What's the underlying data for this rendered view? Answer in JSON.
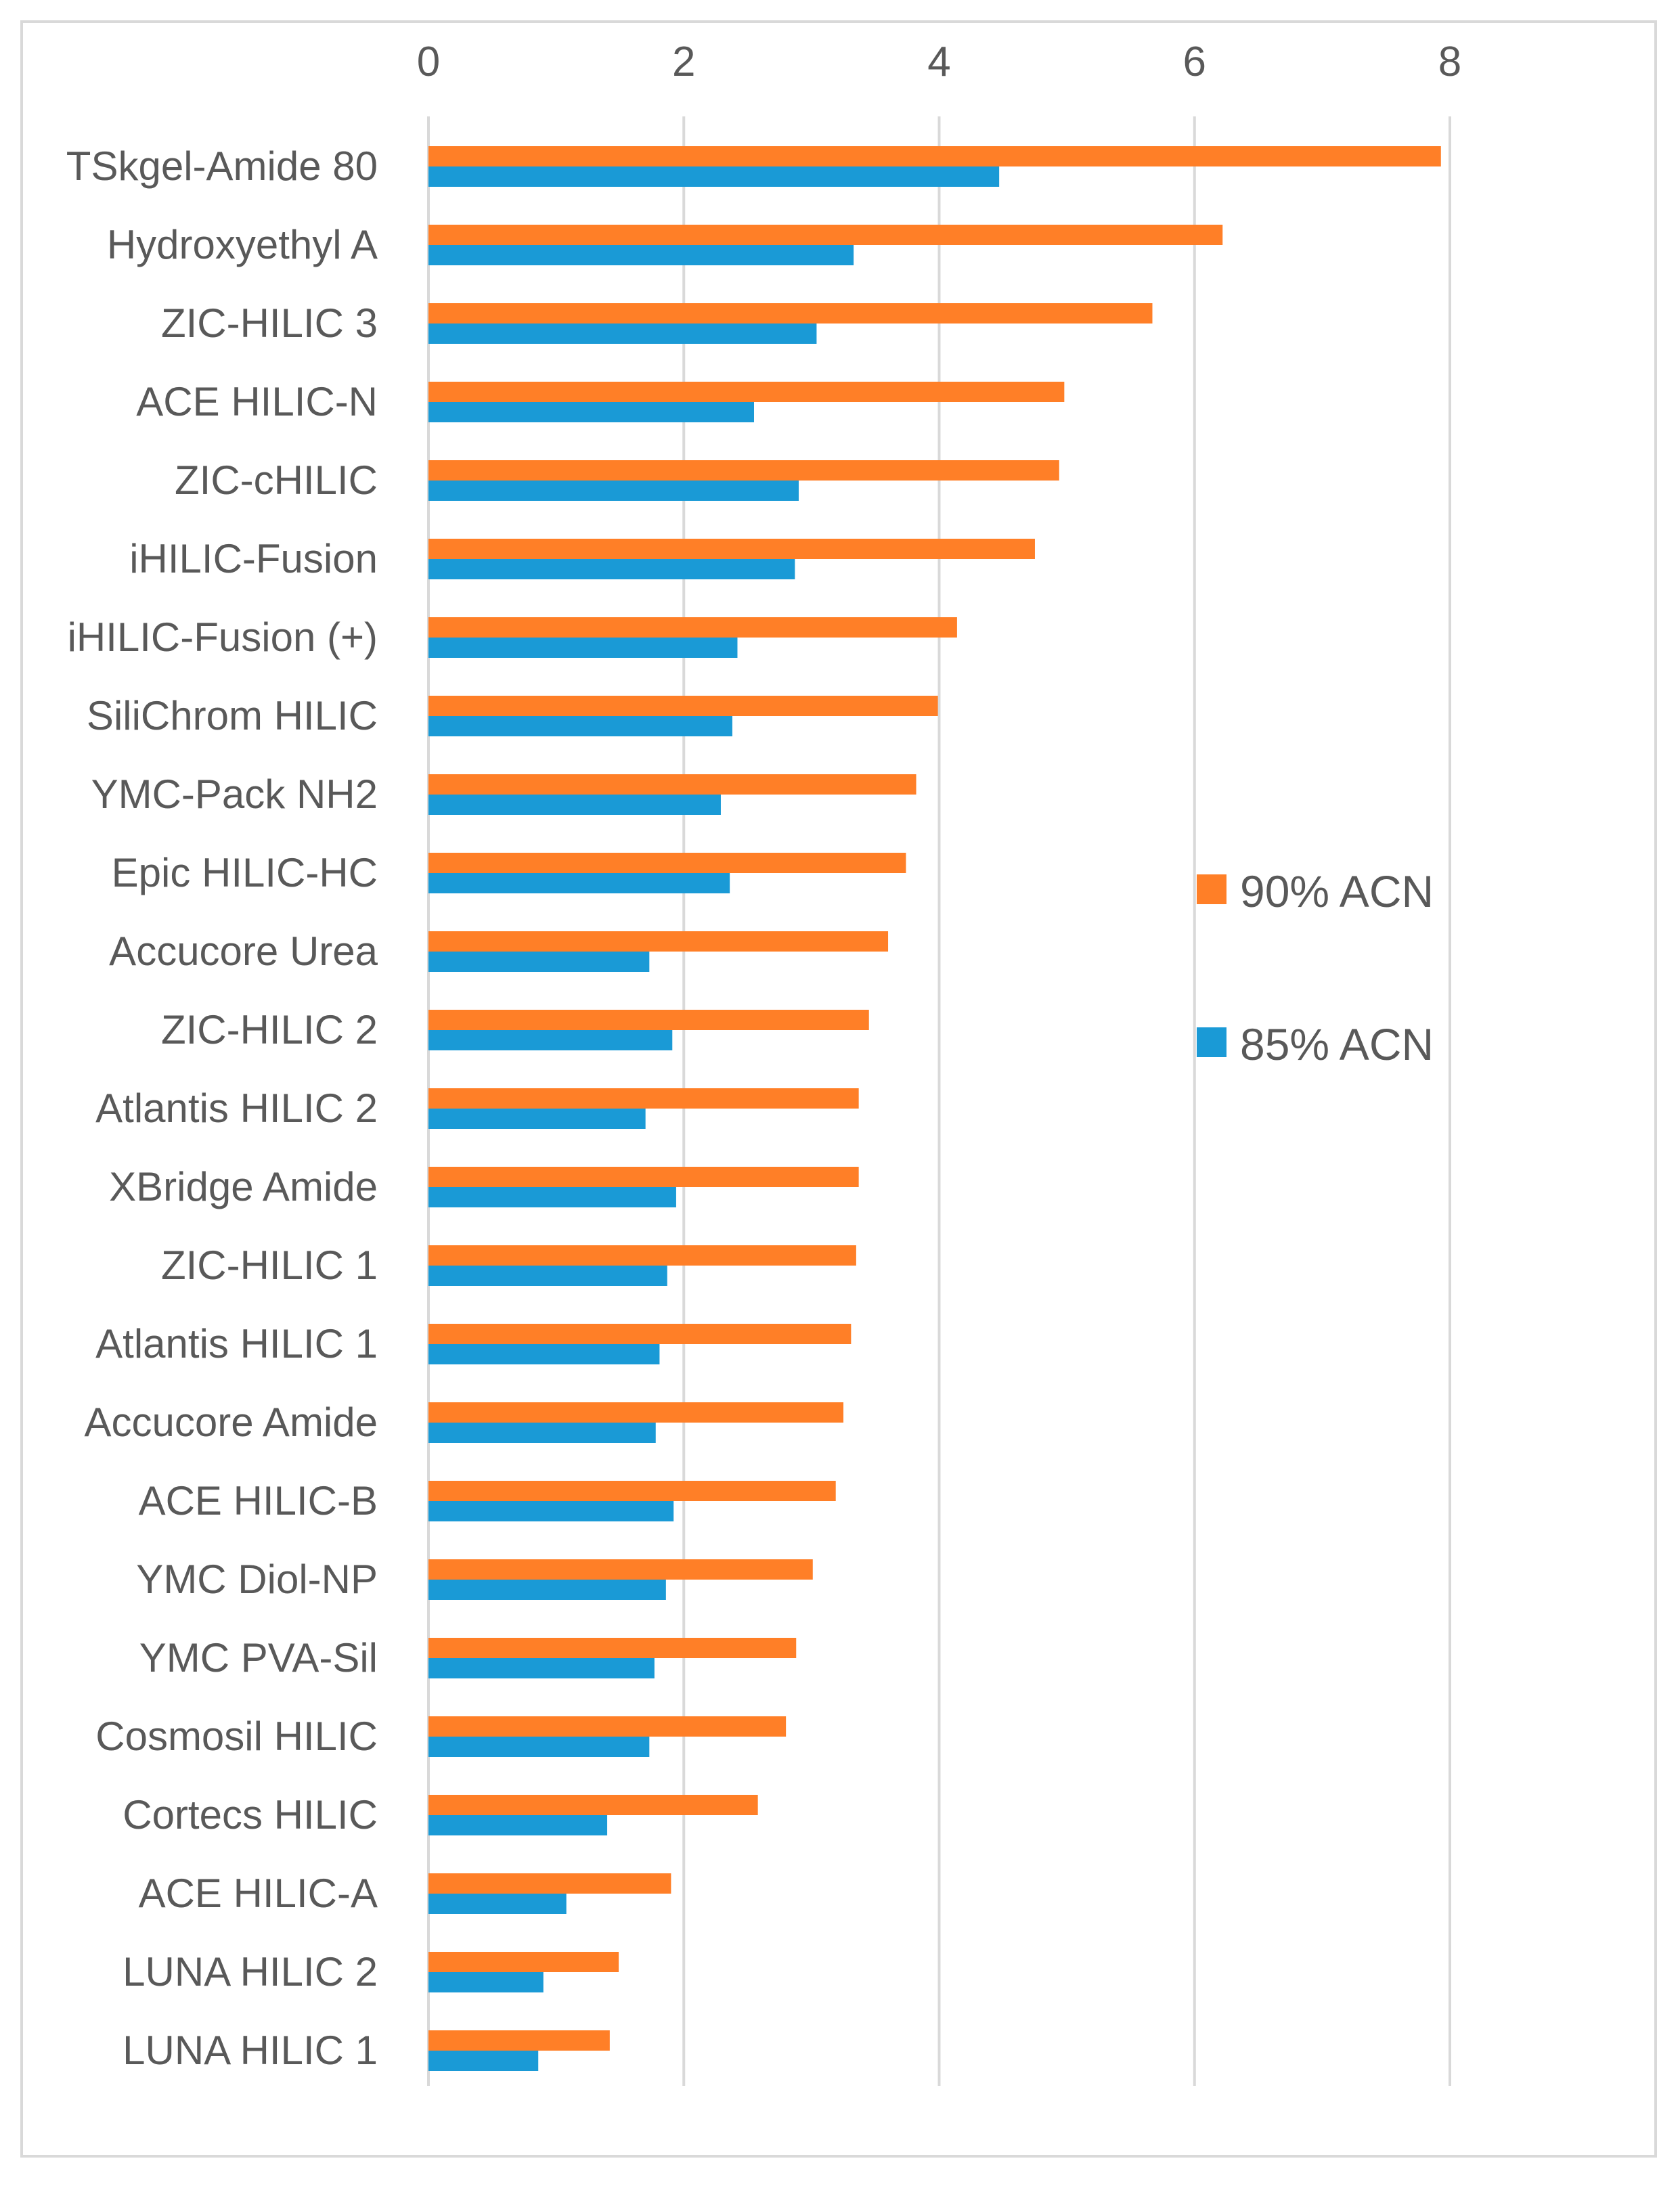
{
  "chart_data": {
    "type": "bar",
    "orientation": "horizontal",
    "title": "",
    "xlabel": "",
    "ylabel": "",
    "xlim": [
      0,
      8
    ],
    "x_ticks": [
      0,
      2,
      4,
      6,
      8
    ],
    "x_tick_labels": [
      "0",
      "2",
      "4",
      "6",
      "8"
    ],
    "grid": true,
    "legend_position": "right",
    "categories": [
      "TSkgel-Amide 80",
      "Hydroxyethyl A",
      "ZIC-HILIC 3",
      "ACE HILIC-N",
      "ZIC-cHILIC",
      "iHILIC-Fusion",
      "iHILIC-Fusion (+)",
      "SiliChrom HILIC",
      "YMC-Pack NH2",
      "Epic HILIC-HC",
      "Accucore Urea",
      "ZIC-HILIC 2",
      "Atlantis HILIC 2",
      "XBridge Amide",
      "ZIC-HILIC 1",
      "Atlantis HILIC 1",
      "Accucore Amide",
      "ACE HILIC-B",
      "YMC Diol-NP",
      "YMC PVA-Sil",
      "Cosmosil HILIC",
      "Cortecs HILIC",
      "ACE HILIC-A",
      "LUNA HILIC 2",
      "LUNA HILIC 1"
    ],
    "series": [
      {
        "name": "90% ACN",
        "color": "#ff7f27",
        "values": [
          7.93,
          6.22,
          5.67,
          4.98,
          4.94,
          4.75,
          4.14,
          3.99,
          3.82,
          3.74,
          3.6,
          3.45,
          3.37,
          3.37,
          3.35,
          3.31,
          3.25,
          3.19,
          3.01,
          2.88,
          2.8,
          2.58,
          1.9,
          1.49,
          1.42
        ]
      },
      {
        "name": "85% ACN",
        "color": "#1a9ad6",
        "values": [
          4.47,
          3.33,
          3.04,
          2.55,
          2.9,
          2.87,
          2.42,
          2.38,
          2.29,
          2.36,
          1.73,
          1.91,
          1.7,
          1.94,
          1.87,
          1.81,
          1.78,
          1.92,
          1.86,
          1.77,
          1.73,
          1.4,
          1.08,
          0.9,
          0.86
        ]
      }
    ]
  }
}
